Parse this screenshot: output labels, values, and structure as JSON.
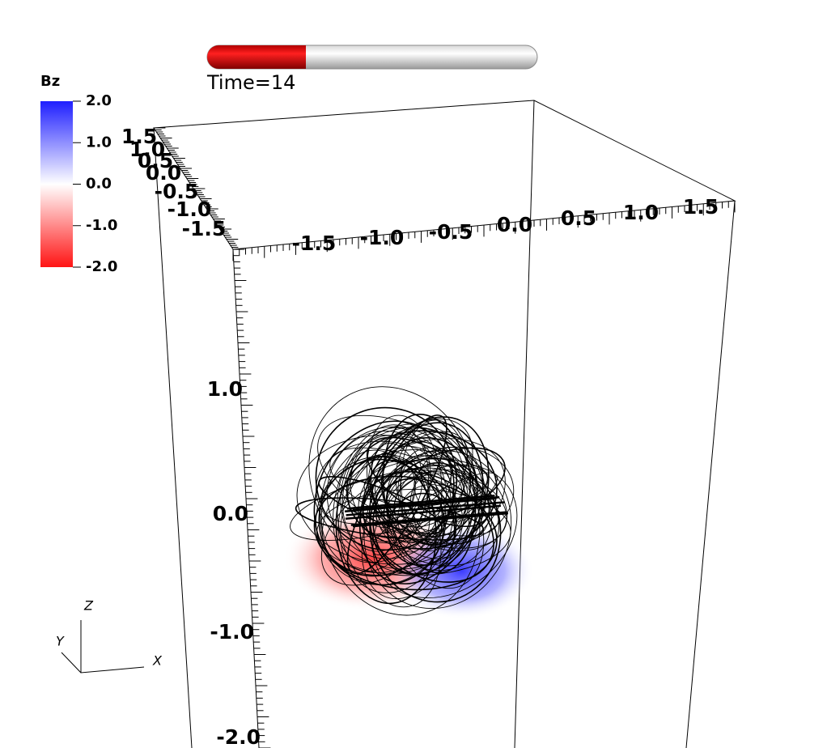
{
  "colorbar": {
    "title": "Bz",
    "labels": [
      "2.0",
      "1.0",
      "0.0",
      "-1.0",
      "-2.0"
    ]
  },
  "time_label": "Time=14",
  "axes": {
    "top_x_labels": [
      "-1.5",
      "-1.0",
      "-0.5",
      "0.0",
      "0.5",
      "1.0",
      "1.5"
    ],
    "top_y_labels": [
      "1.5",
      "1.0",
      "0.5",
      "0.0",
      "-0.5",
      "-1.0",
      "-1.5"
    ],
    "z_labels": [
      "1.0",
      "0.0",
      "-1.0",
      "-2.0"
    ]
  },
  "triad": {
    "x": "X",
    "y": "Y",
    "z": "Z"
  }
}
